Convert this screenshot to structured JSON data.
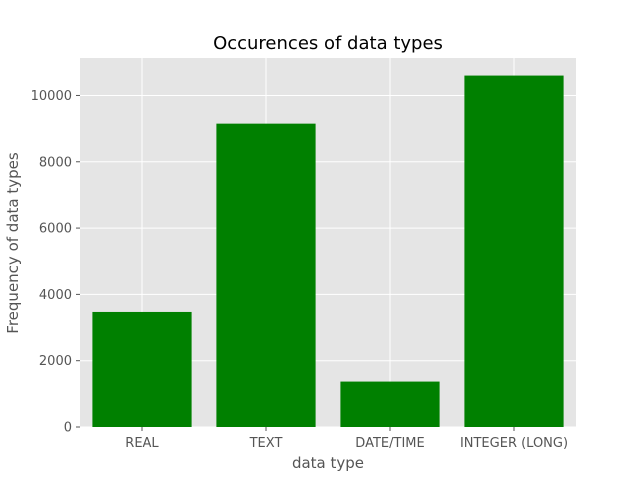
{
  "chart_data": {
    "type": "bar",
    "title": "Occurences of data types",
    "xlabel": "data type",
    "ylabel": "Frequency of data types",
    "categories": [
      "REAL",
      "TEXT",
      "DATE/TIME",
      "INTEGER (LONG)"
    ],
    "values": [
      3470,
      9150,
      1370,
      10600
    ],
    "ylim": [
      0,
      11130
    ],
    "yticks": [
      0,
      2000,
      4000,
      6000,
      8000,
      10000
    ],
    "ytick_labels": [
      "0",
      "2000",
      "4000",
      "6000",
      "8000",
      "10000"
    ],
    "grid": true,
    "bar_color": "#008000",
    "plot_background": "#e5e5e5",
    "grid_color": "#ffffff"
  }
}
